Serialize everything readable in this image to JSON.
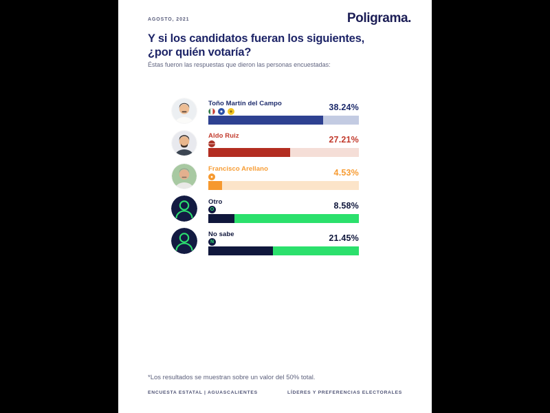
{
  "page": {
    "date": "AGOSTO, 2021",
    "brand": "Poligrama.",
    "title_line1": "Y si los candidatos fueran los siguientes,",
    "title_line2": "¿por quién votaría?",
    "subtitle": "Éstas fueron las respuestas que dieron las personas encuestadas:",
    "footnote": "*Los resultados se muestran sobre un valor del 50% total.",
    "footer_left": "ENCUESTA ESTATAL | AGUASCALIENTES",
    "footer_right": "LÍDERES Y PREFERENCIAS ELECTORALES"
  },
  "chart_data": {
    "type": "bar",
    "orientation": "horizontal",
    "title": "Y si los candidatos fueran los siguientes, ¿por quién votaría?",
    "categories": [
      "Toño Martín del Campo",
      "Aldo Ruiz",
      "Francisco Arellano",
      "Otro",
      "No sabe"
    ],
    "values": [
      38.24,
      27.21,
      4.53,
      8.58,
      21.45
    ],
    "value_labels": [
      "38.24%",
      "27.21%",
      "4.53%",
      "8.58%",
      "21.45%"
    ],
    "axis_max": 50,
    "grid": false,
    "legend": false,
    "note": "*Los resultados se muestran sobre un valor del 50% total."
  },
  "rows": [
    {
      "name": "Toño Martín del Campo",
      "value": 38.24,
      "percent_label": "38.24%",
      "name_color": "#1c2a6b",
      "percent_color": "#1c2a6b",
      "fill_color": "#2e4191",
      "track_color": "#c3cbe2",
      "party_icons": [
        "pri-icon",
        "pan-icon",
        "prd-icon"
      ],
      "avatar": "candidate-photo"
    },
    {
      "name": "Aldo Ruiz",
      "value": 27.21,
      "percent_label": "27.21%",
      "name_color": "#c23a2c",
      "percent_color": "#c23a2c",
      "fill_color": "#b32d21",
      "track_color": "#f5ded7",
      "party_icons": [
        "morena-icon"
      ],
      "avatar": "candidate-photo"
    },
    {
      "name": "Francisco Arellano",
      "value": 4.53,
      "percent_label": "4.53%",
      "name_color": "#f79c33",
      "percent_color": "#f79c33",
      "fill_color": "#f6982e",
      "track_color": "#fce4c9",
      "party_icons": [
        "mc-icon"
      ],
      "avatar": "candidate-photo"
    },
    {
      "name": "Otro",
      "value": 8.58,
      "percent_label": "8.58%",
      "icon_letter": "O",
      "name_color": "#10173c",
      "percent_color": "#10173c",
      "fill_color": "#10173c",
      "track_color": "#2be06c",
      "party_icons": [
        "otro-letter-icon"
      ],
      "avatar": "person-silhouette"
    },
    {
      "name": "No sabe",
      "value": 21.45,
      "percent_label": "21.45%",
      "icon_letter": "N",
      "name_color": "#10173c",
      "percent_color": "#10173c",
      "fill_color": "#10173c",
      "track_color": "#2be06c",
      "party_icons": [
        "nosabe-letter-icon"
      ],
      "avatar": "person-silhouette"
    }
  ],
  "colors": {
    "background_frame": "#000000",
    "page": "#ffffff",
    "brand_navy": "#1b1d55",
    "accent_green": "#2be06c",
    "silhouette_navy": "#131b42"
  }
}
